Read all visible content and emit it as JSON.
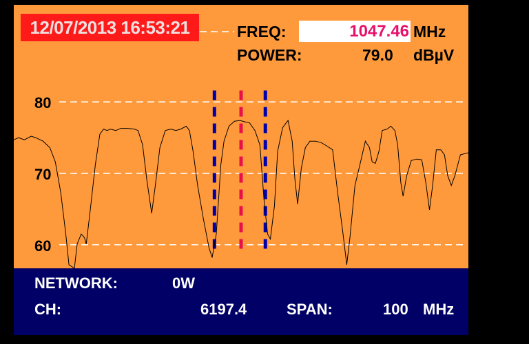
{
  "header": {
    "datetime": "12/07/2013 16:53:21",
    "freq_label": "FREQ:",
    "freq_value": "1047.46",
    "freq_unit": "MHz",
    "power_label": "POWER:",
    "power_value": "79.0",
    "power_unit": "dBµV"
  },
  "footer": {
    "network_label": "NETWORK:",
    "network_value": "0W",
    "ch_label": "CH:",
    "ch_value": "6197.4",
    "span_label": "SPAN:",
    "span_value": "100",
    "span_unit": "MHz"
  },
  "colors": {
    "background": "#ff9a3c",
    "trace": "#000000",
    "grid": "#ffffff",
    "center_marker": "#e8104a",
    "band_markers": "#0000aa",
    "datetime_bg": "#ff1a1a",
    "info_bg": "#000066",
    "freq_value": "#e8106a"
  },
  "chart_data": {
    "type": "line",
    "xlabel": "",
    "ylabel": "",
    "xlim": [
      997.46,
      1097.46
    ],
    "ylim": [
      56.7,
      93.6
    ],
    "yticks": [
      "60",
      "70",
      "80"
    ],
    "ytick_values": [
      60,
      70,
      80
    ],
    "grid": true,
    "markers": {
      "center": 1047.46,
      "band": [
        1041.6,
        1052.8
      ]
    },
    "x": [
      997.5,
      998.5,
      999.8,
      1001.3,
      1002.3,
      1003.9,
      1005.4,
      1006.6,
      1007.8,
      1008.9,
      1009.6,
      1010.8,
      1011.4,
      1012.3,
      1013.0,
      1013.4,
      1014.2,
      1015.4,
      1016.4,
      1017.2,
      1018.0,
      1018.7,
      1019.9,
      1021.0,
      1022.5,
      1024.0,
      1024.8,
      1025.8,
      1026.7,
      1027.8,
      1028.6,
      1029.6,
      1030.8,
      1032.0,
      1033.1,
      1034.2,
      1035.4,
      1036.1,
      1036.9,
      1037.9,
      1039.2,
      1040.4,
      1041.1,
      1042.0,
      1043.0,
      1043.7,
      1044.8,
      1046.0,
      1047.2,
      1048.4,
      1049.3,
      1050.5,
      1051.6,
      1052.5,
      1053.3,
      1053.9,
      1054.8,
      1055.5,
      1056.6,
      1057.8,
      1058.7,
      1059.3,
      1059.9,
      1060.7,
      1061.6,
      1062.6,
      1063.9,
      1065.1,
      1066.4,
      1067.6,
      1068.7,
      1069.8,
      1070.7,
      1071.4,
      1072.5,
      1073.6,
      1074.8,
      1075.7,
      1076.3,
      1077.0,
      1077.8,
      1078.5,
      1079.6,
      1080.4,
      1081.3,
      1081.9,
      1082.6,
      1083.1,
      1083.9,
      1084.9,
      1086.1,
      1087.2,
      1088.1,
      1088.9,
      1089.6,
      1090.4,
      1091.4,
      1092.2,
      1092.9,
      1093.7,
      1094.5,
      1095.7,
      1097.5
    ],
    "y": [
      74.7,
      75.0,
      74.7,
      75.2,
      75.0,
      74.5,
      73.6,
      71.6,
      67.3,
      61.5,
      57.2,
      56.7,
      60.1,
      61.5,
      61.0,
      60.1,
      64.4,
      71.2,
      75.5,
      76.2,
      76.0,
      76.2,
      76.0,
      76.3,
      76.3,
      76.2,
      76.0,
      74.0,
      69.2,
      64.4,
      68.3,
      73.6,
      76.0,
      76.2,
      76.0,
      76.2,
      76.6,
      76.0,
      73.1,
      68.3,
      63.5,
      59.6,
      58.2,
      61.5,
      71.2,
      74.5,
      76.6,
      77.3,
      77.4,
      77.2,
      77.1,
      76.0,
      74.0,
      66.3,
      61.5,
      60.8,
      65.4,
      73.1,
      76.4,
      77.4,
      74.5,
      69.2,
      65.7,
      70.7,
      73.6,
      74.5,
      74.5,
      74.3,
      73.8,
      73.3,
      67.3,
      62.0,
      57.2,
      61.0,
      68.3,
      71.2,
      74.5,
      73.6,
      71.6,
      71.4,
      73.1,
      76.0,
      76.2,
      76.6,
      76.0,
      74.0,
      68.7,
      66.8,
      69.7,
      71.8,
      72.0,
      71.9,
      68.7,
      64.9,
      68.3,
      73.3,
      73.3,
      72.6,
      69.7,
      68.3,
      69.7,
      72.6,
      72.9
    ]
  }
}
